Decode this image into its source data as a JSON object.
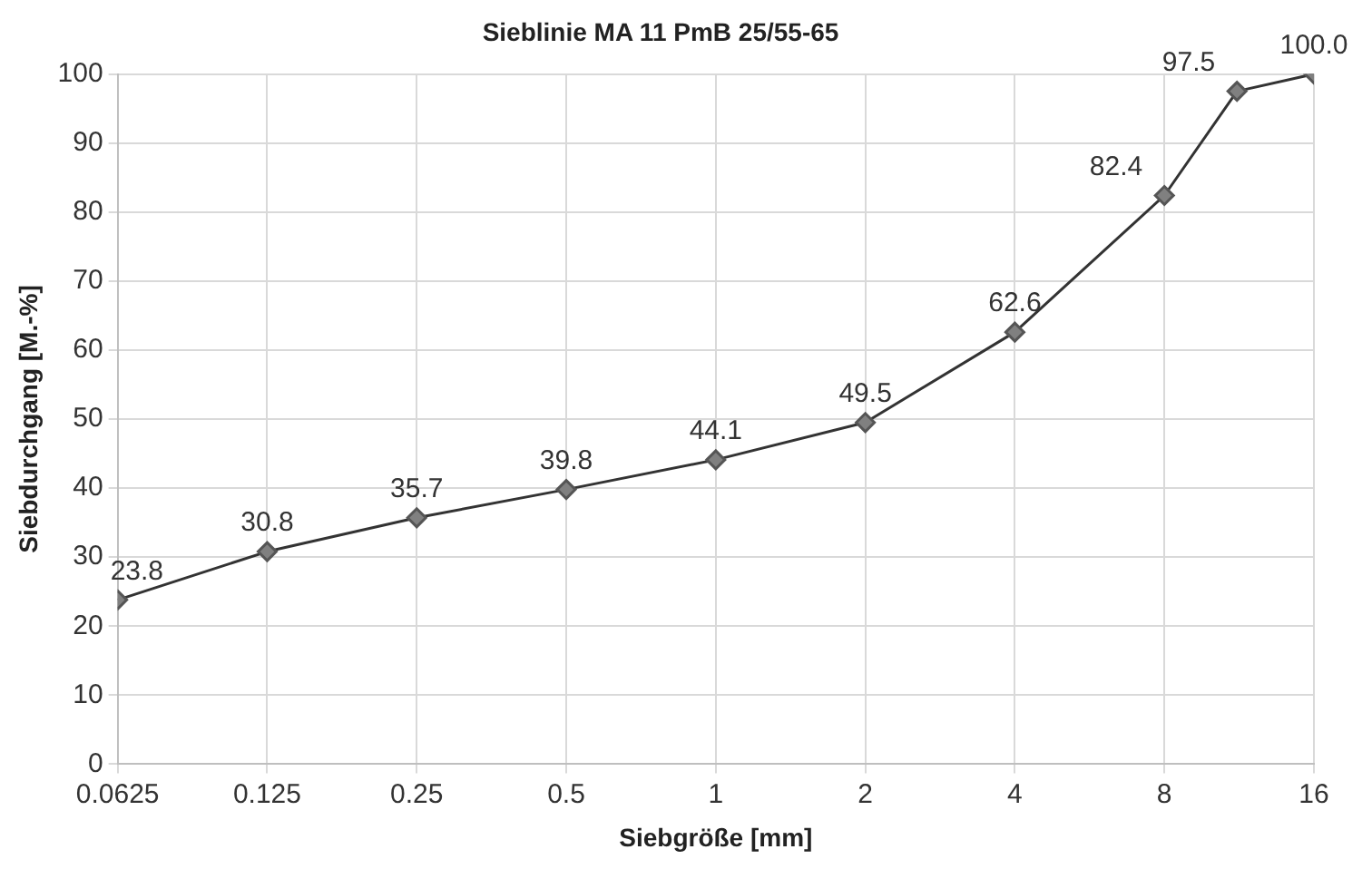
{
  "chart_data": {
    "type": "line",
    "title": "Sieblinie MA 11 PmB 25/55-65",
    "xlabel": "Siebgröße [mm]",
    "ylabel": "Siebdurchgang [M.-%]",
    "x": [
      0.0625,
      0.125,
      0.25,
      0.5,
      1,
      2,
      4,
      8,
      11.2,
      16
    ],
    "series": [
      {
        "color": "#808080",
        "values": [
          23.8,
          30.8,
          35.7,
          39.8,
          44.1,
          49.5,
          62.6,
          82.4,
          97.5,
          100.0
        ],
        "value_labels": [
          "23.8",
          "30.8",
          "35.7",
          "39.8",
          "44.1",
          "49.5",
          "62.6",
          "82.4",
          "97.5",
          "100.0"
        ]
      }
    ],
    "log": "x",
    "xlim": [
      0.0625,
      16
    ],
    "xticks": [
      0.0625,
      0.125,
      0.25,
      0.5,
      1,
      2,
      4,
      8,
      16
    ],
    "ylim": [
      0,
      100
    ],
    "yticks": [
      0,
      10,
      20,
      30,
      40,
      50,
      60,
      70,
      80,
      90,
      100
    ],
    "grid": true,
    "legend": false,
    "marker": "diamond",
    "line_style": "solid"
  }
}
